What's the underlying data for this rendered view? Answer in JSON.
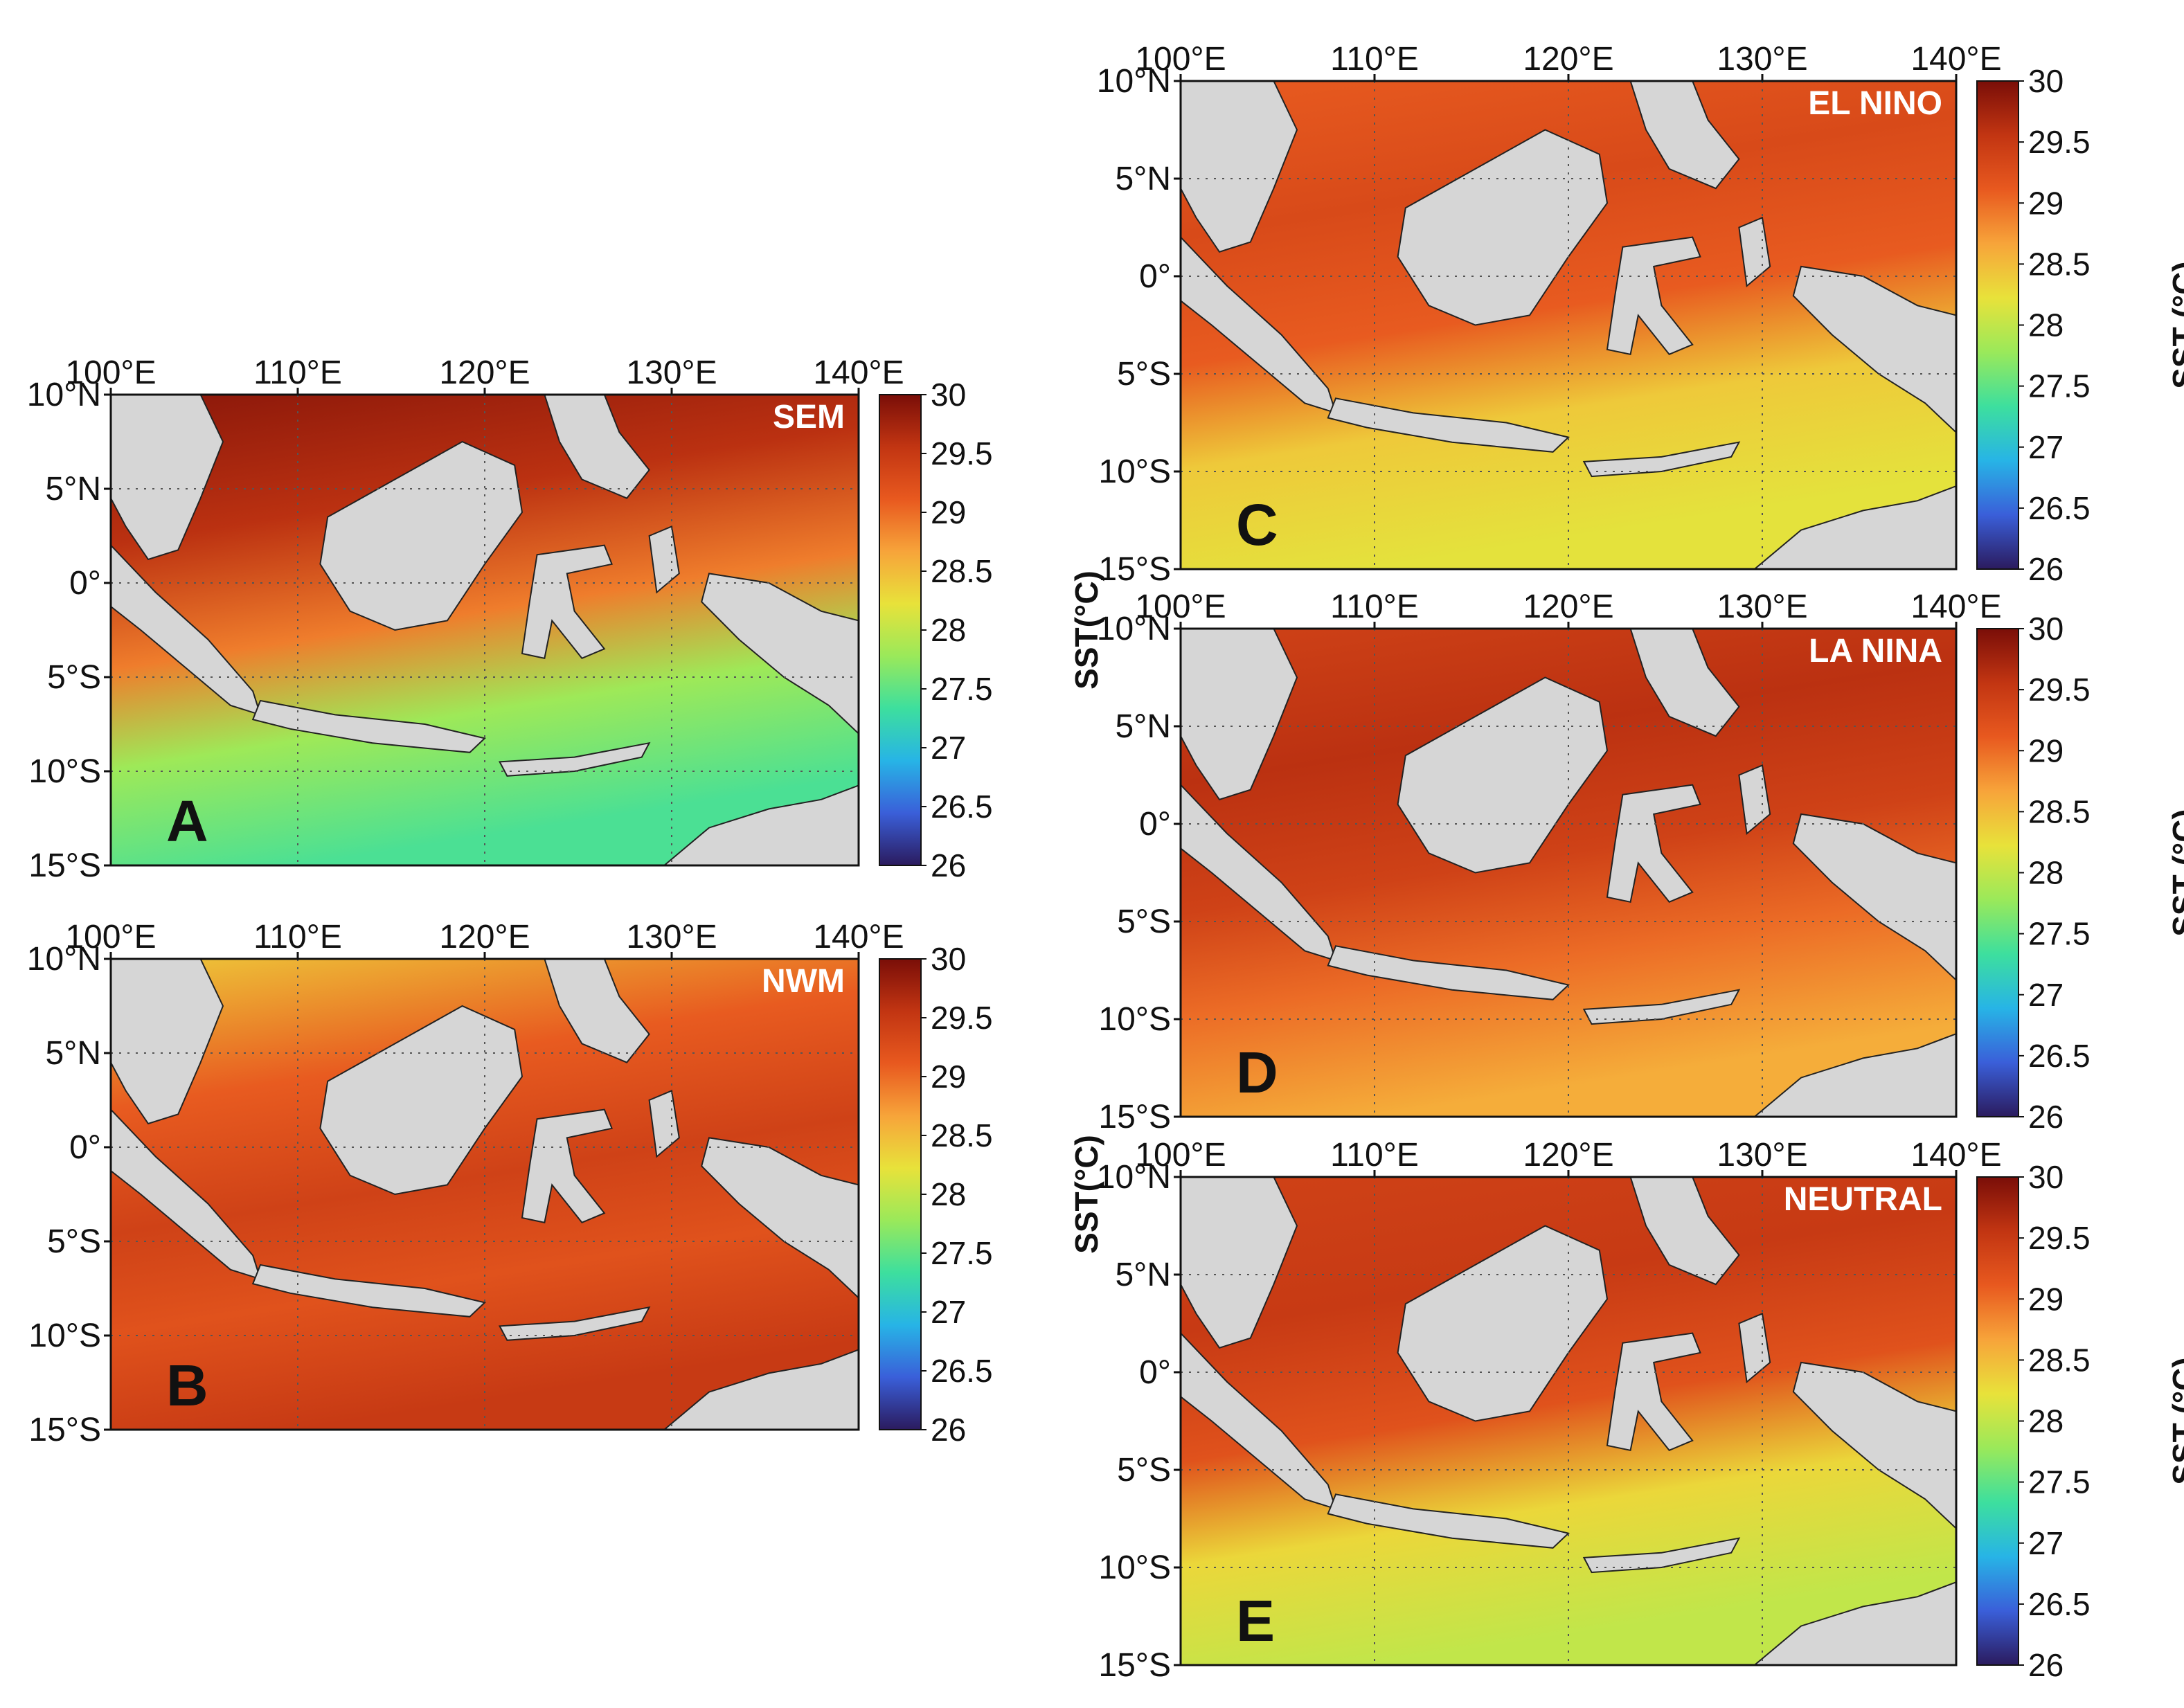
{
  "colorbar": {
    "ticks": [
      "30",
      "29.5",
      "29",
      "28.5",
      "28",
      "27.5",
      "27",
      "26.5",
      "26"
    ],
    "range": [
      26,
      30
    ]
  },
  "colormap": [
    "#2b1b5e",
    "#3a5fd9",
    "#27b4e6",
    "#3ddf9e",
    "#9ae95a",
    "#e8e23a",
    "#f7a43a",
    "#e8591f",
    "#c23512",
    "#7a0e08"
  ],
  "land_color": "#d6d6d6",
  "panels": [
    {
      "id": "A",
      "letter": "A",
      "season": "SEM",
      "cb_label": "SST(°C)",
      "lon_ticks": [
        "100°E",
        "110°E",
        "120°E",
        "130°E",
        "140°E"
      ],
      "lat_ticks": [
        "10°N",
        "5°N",
        "0°",
        "5°S",
        "10°S",
        "15°S"
      ],
      "sst_mean": 29.0,
      "gradient": [
        [
          0,
          29.9
        ],
        [
          0.3,
          29.6
        ],
        [
          0.55,
          28.9
        ],
        [
          0.75,
          27.8
        ],
        [
          1,
          27.4
        ]
      ]
    },
    {
      "id": "B",
      "letter": "B",
      "season": "NWM",
      "cb_label": "SST(°C)",
      "lon_ticks": [
        "100°E",
        "110°E",
        "120°E",
        "130°E",
        "140°E"
      ],
      "lat_ticks": [
        "10°N",
        "5°N",
        "0°",
        "5°S",
        "10°S",
        "15°S"
      ],
      "sst_mean": 29.2,
      "gradient": [
        [
          0,
          28.4
        ],
        [
          0.3,
          29.1
        ],
        [
          0.55,
          29.4
        ],
        [
          0.75,
          29.2
        ],
        [
          1,
          29.5
        ]
      ]
    },
    {
      "id": "C",
      "letter": "C",
      "season": "EL NINO",
      "cb_label": "SST (°C)",
      "lon_ticks": [
        "100°E",
        "110°E",
        "120°E",
        "130°E",
        "140°E"
      ],
      "lat_ticks": [
        "10°N",
        "5°N",
        "0°",
        "5°S",
        "10°S",
        "15°S"
      ],
      "sst_mean": 29.0,
      "gradient": [
        [
          0,
          29.1
        ],
        [
          0.3,
          29.3
        ],
        [
          0.55,
          29.1
        ],
        [
          0.75,
          28.4
        ],
        [
          1,
          28.2
        ]
      ]
    },
    {
      "id": "D",
      "letter": "D",
      "season": "LA NINA",
      "cb_label": "SST (°C)",
      "lon_ticks": [
        "100°E",
        "110°E",
        "120°E",
        "130°E",
        "140°E"
      ],
      "lat_ticks": [
        "10°N",
        "5°N",
        "0°",
        "5°S",
        "10°S",
        "15°S"
      ],
      "sst_mean": 29.2,
      "gradient": [
        [
          0,
          29.4
        ],
        [
          0.3,
          29.6
        ],
        [
          0.55,
          29.4
        ],
        [
          0.75,
          29.0
        ],
        [
          1,
          28.6
        ]
      ]
    },
    {
      "id": "E",
      "letter": "E",
      "season": "NEUTRAL",
      "cb_label": "SST (°C)",
      "lon_ticks": [
        "100°E",
        "110°E",
        "120°E",
        "130°E",
        "140°E"
      ],
      "lat_ticks": [
        "10°N",
        "5°N",
        "0°",
        "5°S",
        "10°S",
        "15°S"
      ],
      "sst_mean": 29.0,
      "gradient": [
        [
          0,
          29.4
        ],
        [
          0.3,
          29.5
        ],
        [
          0.55,
          29.2
        ],
        [
          0.75,
          28.3
        ],
        [
          1,
          28.0
        ]
      ]
    }
  ]
}
